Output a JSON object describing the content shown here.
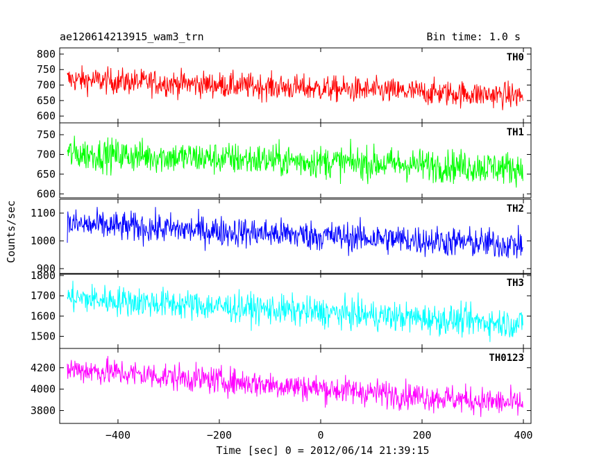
{
  "header": {
    "title": "ae120614213915_wam3_trn",
    "bin_time": "Bin time: 1.0 s"
  },
  "axes": {
    "xlabel": "Time [sec] 0 = 2012/06/14 21:39:15",
    "ylabel": "Counts/sec"
  },
  "chart_data": {
    "type": "line",
    "x_range": [
      -515,
      415
    ],
    "x_ticks": [
      -400,
      -200,
      0,
      200,
      400
    ],
    "x_start": -500,
    "x_end": 399,
    "x_step": 1,
    "panels": [
      {
        "name": "TH0",
        "color": "#ff0000",
        "ylim": [
          578,
          820
        ],
        "yticks": [
          600,
          650,
          700,
          750,
          800
        ],
        "approx_trend": {
          "start": 718,
          "end": 665
        },
        "approx_noise_range": 130
      },
      {
        "name": "TH1",
        "color": "#00ff00",
        "ylim": [
          590,
          780
        ],
        "yticks": [
          600,
          650,
          700,
          750
        ],
        "approx_trend": {
          "start": 702,
          "end": 665
        },
        "approx_noise_range": 130
      },
      {
        "name": "TH2",
        "color": "#0000ff",
        "ylim": [
          880,
          1150
        ],
        "yticks": [
          900,
          1000,
          1100
        ],
        "approx_trend": {
          "start": 1060,
          "end": 985
        },
        "approx_noise_range": 170
      },
      {
        "name": "TH3",
        "color": "#00ffff",
        "ylim": [
          1440,
          1810
        ],
        "yticks": [
          1500,
          1600,
          1700,
          1800
        ],
        "approx_trend": {
          "start": 1690,
          "end": 1560
        },
        "approx_noise_range": 230
      },
      {
        "name": "TH0123",
        "color": "#ff00ff",
        "ylim": [
          3680,
          4380
        ],
        "yticks": [
          3800,
          4000,
          4200
        ],
        "approx_trend": {
          "start": 4190,
          "end": 3860
        },
        "approx_noise_range": 400
      }
    ]
  }
}
